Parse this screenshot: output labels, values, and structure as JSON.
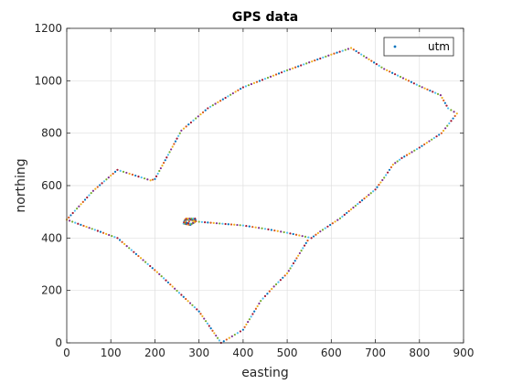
{
  "chart_data": {
    "type": "scatter",
    "title": "GPS data",
    "xlabel": "easting",
    "ylabel": "northing",
    "xlim": [
      0,
      900
    ],
    "ylim": [
      0,
      1200
    ],
    "xticks": [
      0,
      100,
      200,
      300,
      400,
      500,
      600,
      700,
      800,
      900
    ],
    "yticks": [
      0,
      200,
      400,
      600,
      800,
      1000,
      1200
    ],
    "grid": true,
    "legend": {
      "position": "top-right",
      "entries": [
        "utm"
      ]
    },
    "colors": [
      "#0072bd",
      "#d95319",
      "#edb120",
      "#7e2f8e",
      "#77ac30",
      "#4dbeee",
      "#a2142f"
    ],
    "series": [
      {
        "name": "utm",
        "path": [
          [
            270,
            462
          ],
          [
            285,
            466
          ],
          [
            300,
            462
          ],
          [
            400,
            448
          ],
          [
            450,
            435
          ],
          [
            500,
            420
          ],
          [
            555,
            400
          ],
          [
            575,
            425
          ],
          [
            620,
            475
          ],
          [
            660,
            530
          ],
          [
            700,
            585
          ],
          [
            720,
            630
          ],
          [
            740,
            680
          ],
          [
            760,
            705
          ],
          [
            800,
            745
          ],
          [
            850,
            800
          ],
          [
            885,
            875
          ],
          [
            865,
            895
          ],
          [
            848,
            945
          ],
          [
            800,
            980
          ],
          [
            720,
            1045
          ],
          [
            645,
            1125
          ],
          [
            600,
            1100
          ],
          [
            500,
            1040
          ],
          [
            400,
            975
          ],
          [
            320,
            895
          ],
          [
            260,
            810
          ],
          [
            200,
            625
          ],
          [
            190,
            620
          ],
          [
            115,
            660
          ],
          [
            60,
            580
          ],
          [
            0,
            470
          ],
          [
            115,
            400
          ],
          [
            205,
            270
          ],
          [
            300,
            120
          ],
          [
            350,
            0
          ],
          [
            400,
            50
          ],
          [
            440,
            160
          ],
          [
            470,
            215
          ],
          [
            500,
            265
          ],
          [
            550,
            400
          ]
        ],
        "loop": [
          [
            268,
            470
          ],
          [
            288,
            470
          ],
          [
            290,
            460
          ],
          [
            280,
            450
          ],
          [
            265,
            455
          ]
        ]
      }
    ]
  }
}
